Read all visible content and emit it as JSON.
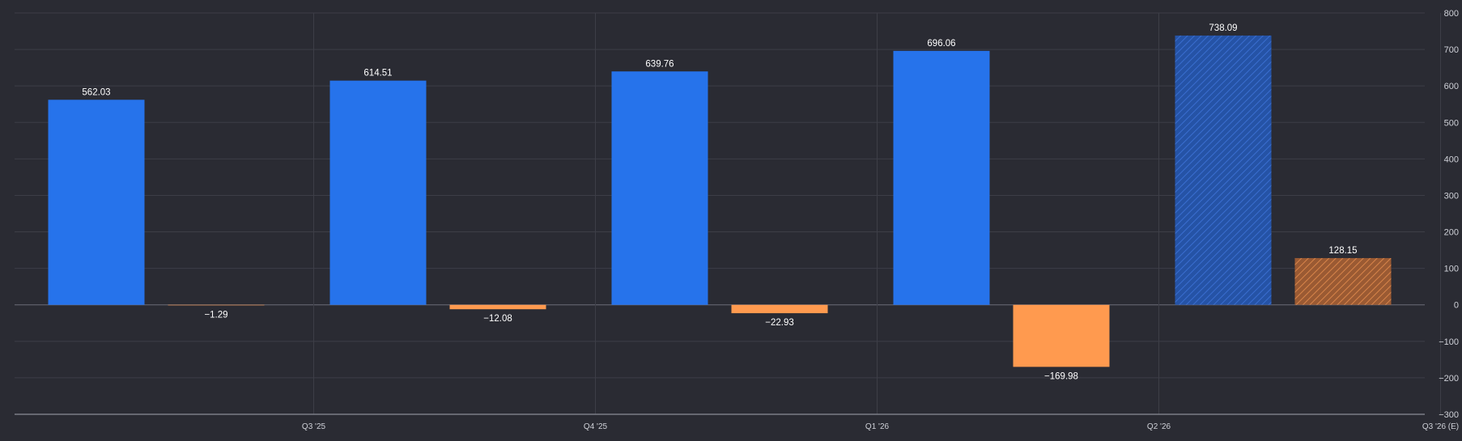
{
  "chart_data": {
    "type": "bar",
    "title": "",
    "xlabel": "",
    "ylabel": "",
    "categories": [
      "Q3 '25",
      "Q4 '25",
      "Q1 '26",
      "Q2 '26",
      "Q3 '26 (E)"
    ],
    "estimate_category_index": 4,
    "series": [
      {
        "values": [
          562.03,
          614.51,
          639.76,
          696.06,
          738.09
        ]
      },
      {
        "values": [
          -1.29,
          -12.08,
          -22.93,
          -169.98,
          128.15
        ]
      }
    ],
    "ylim": [
      -300,
      800
    ],
    "yticks": [
      800,
      700,
      600,
      500,
      400,
      300,
      200,
      100,
      0,
      -100,
      -200,
      -300
    ],
    "ytick_labels": [
      "800",
      "700",
      "600",
      "500",
      "400",
      "300",
      "200",
      "100",
      "0",
      "−100",
      "−200",
      "−300"
    ],
    "value_labels": [
      [
        "562.03",
        "614.51",
        "639.76",
        "696.06",
        "738.09"
      ],
      [
        "−1.29",
        "−12.08",
        "−22.93",
        "−169.98",
        "128.15"
      ]
    ],
    "y_axis_position": "right",
    "grid": true,
    "colors": {
      "background": "#2a2b33",
      "series_a": "#2673eb",
      "series_a_estimate": "#2553a6",
      "series_b": "#ff9a4f",
      "series_b_estimate": "#b66a3a",
      "grid": "#3d3e47",
      "axis": "#8a8c96",
      "label_text": "#ffffff",
      "tick_text": "#cfd1d8"
    }
  }
}
